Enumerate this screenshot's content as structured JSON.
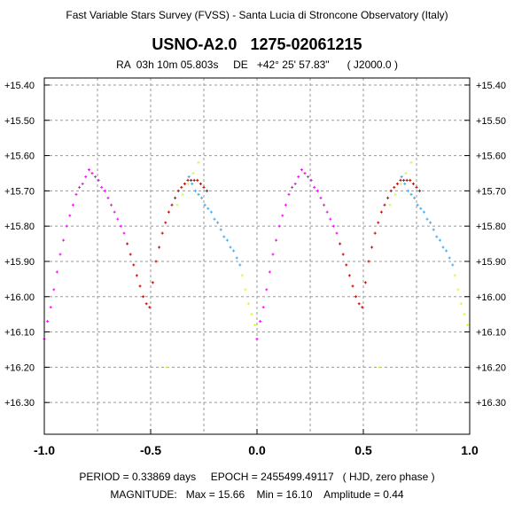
{
  "header": {
    "survey": "Fast Variable Stars Survey (FVSS) - Santa Lucia di Stroncone Observatory (Italy)",
    "star_id": "USNO-A2.0   1275-02061215",
    "coordinates": "RA  03h 10m 05.803s     DE   +42° 25' 57.83\"      ( J2000.0 )"
  },
  "footer": {
    "line1": "PERIOD = 0.33869 days     EPOCH = 2455499.49117   ( HJD, zero phase )",
    "line2": "MAGNITUDE:   Max = 15.66    Min = 16.10    Amplitude = 0.44"
  },
  "colors": {
    "series": [
      "#ff00ff",
      "#cc0000",
      "#33aaff",
      "#ccff33"
    ],
    "grid": "#999999"
  },
  "chart_data": {
    "type": "scatter",
    "title": "USNO-A2.0   1275-02061215",
    "xlabel": "",
    "ylabel": "",
    "xlim": [
      -1.0,
      1.0
    ],
    "ylim": [
      16.39,
      15.38
    ],
    "y_inverted": true,
    "grid": true,
    "x_ticks": [
      "-1.0",
      "-0.5",
      "0.0",
      "0.5",
      "1.0"
    ],
    "y_ticks": [
      "+15.40",
      "+15.50",
      "+15.60",
      "+15.70",
      "+15.80",
      "+15.90",
      "+16.00",
      "+16.10",
      "+16.20",
      "+16.30"
    ],
    "series": [
      {
        "color": "#ff00ff",
        "x": [
          0.0,
          0.015,
          0.03,
          0.045,
          0.06,
          0.075,
          0.09,
          0.105,
          0.12,
          0.135,
          0.15,
          0.165,
          0.18,
          0.195,
          0.21,
          0.225,
          0.24,
          0.255,
          0.27,
          0.285,
          0.3,
          0.315,
          0.33,
          0.345,
          0.36,
          0.375
        ],
        "y": [
          16.12,
          16.07,
          16.03,
          15.98,
          15.93,
          15.88,
          15.84,
          15.8,
          15.77,
          15.74,
          15.71,
          15.69,
          15.68,
          15.66,
          15.64,
          15.65,
          15.66,
          15.67,
          15.69,
          15.7,
          15.72,
          15.74,
          15.76,
          15.78,
          15.8,
          15.82
        ]
      },
      {
        "color": "#cc0000",
        "x": [
          0.39,
          0.405,
          0.42,
          0.435,
          0.45,
          0.465,
          0.48,
          0.495,
          0.51,
          0.525,
          0.54,
          0.555,
          0.57,
          0.585,
          0.6,
          0.615,
          0.63,
          0.645,
          0.66,
          0.675,
          0.69,
          0.705,
          0.72,
          0.735,
          0.75,
          0.765
        ],
        "y": [
          15.85,
          15.88,
          15.91,
          15.94,
          15.97,
          16.0,
          16.02,
          16.03,
          15.96,
          15.9,
          15.86,
          15.82,
          15.79,
          15.76,
          15.74,
          15.72,
          15.7,
          15.69,
          15.68,
          15.67,
          15.67,
          15.67,
          15.67,
          15.68,
          15.69,
          15.7
        ]
      },
      {
        "color": "#33aaff",
        "x": [
          0.68,
          0.695,
          0.71,
          0.725,
          0.74,
          0.755,
          0.77,
          0.785,
          0.8,
          0.815,
          0.83,
          0.845,
          0.86,
          0.875,
          0.89,
          0.905,
          0.92
        ],
        "y": [
          15.66,
          15.68,
          15.7,
          15.71,
          15.72,
          15.74,
          15.75,
          15.76,
          15.78,
          15.79,
          15.81,
          15.83,
          15.84,
          15.86,
          15.87,
          15.89,
          15.91
        ]
      },
      {
        "color": "#ccff33",
        "x": [
          0.93,
          0.945,
          0.96,
          0.975,
          0.99,
          0.625,
          0.65,
          0.675,
          0.7,
          0.725,
          0.575
        ],
        "y": [
          15.94,
          15.98,
          16.02,
          16.05,
          16.08,
          15.74,
          15.71,
          15.68,
          15.65,
          15.62,
          16.2
        ]
      }
    ]
  }
}
